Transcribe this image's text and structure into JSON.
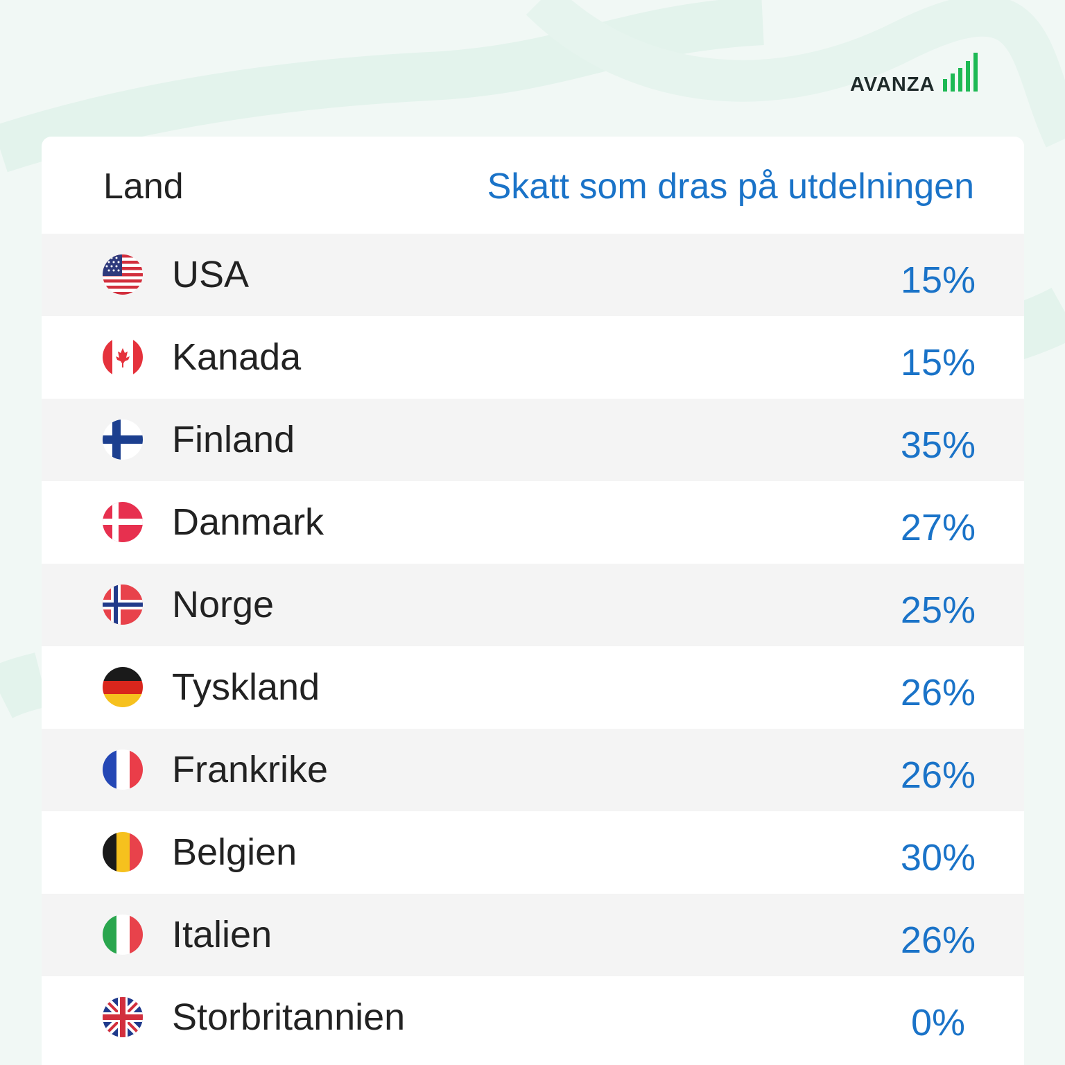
{
  "brand": {
    "name": "AVANZA",
    "accent": "#1db954"
  },
  "colors": {
    "text": "#222222",
    "accent_blue": "#1a73c8",
    "row_alt": "#f4f4f4"
  },
  "table": {
    "headers": {
      "country": "Land",
      "tax": "Skatt som dras på utdelningen"
    },
    "rows": [
      {
        "country": "USA",
        "rate": "15%",
        "flag": "us-flag-icon"
      },
      {
        "country": "Kanada",
        "rate": "15%",
        "flag": "canada-flag-icon"
      },
      {
        "country": "Finland",
        "rate": "35%",
        "flag": "finland-flag-icon"
      },
      {
        "country": "Danmark",
        "rate": "27%",
        "flag": "denmark-flag-icon"
      },
      {
        "country": "Norge",
        "rate": "25%",
        "flag": "norway-flag-icon"
      },
      {
        "country": "Tyskland",
        "rate": "26%",
        "flag": "germany-flag-icon"
      },
      {
        "country": "Frankrike",
        "rate": "26%",
        "flag": "france-flag-icon"
      },
      {
        "country": "Belgien",
        "rate": "30%",
        "flag": "belgium-flag-icon"
      },
      {
        "country": "Italien",
        "rate": "26%",
        "flag": "italy-flag-icon"
      },
      {
        "country": "Storbritannien",
        "rate": "0%",
        "flag": "uk-flag-icon"
      }
    ]
  }
}
